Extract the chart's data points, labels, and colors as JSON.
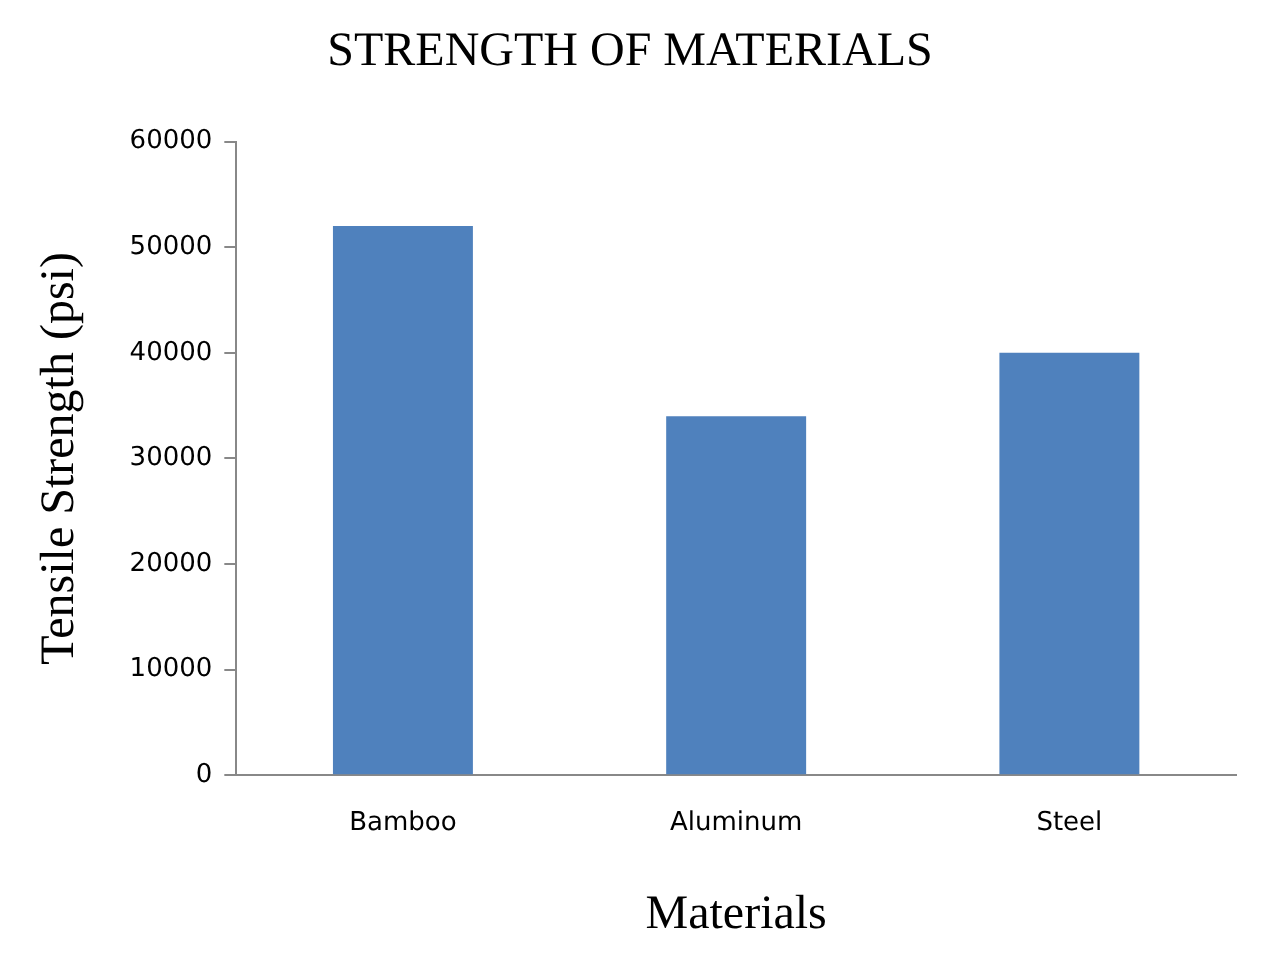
{
  "chart_data": {
    "type": "bar",
    "title": "STRENGTH OF MATERIALS",
    "xlabel": "Materials",
    "ylabel": "Tensile Strength (psi)",
    "categories": [
      "Bamboo",
      "Aluminum",
      "Steel"
    ],
    "values": [
      52000,
      34000,
      40000
    ],
    "color": "#4f81bd",
    "ylim": [
      0,
      60000
    ],
    "yticks": [
      0,
      10000,
      20000,
      30000,
      40000,
      50000,
      60000
    ],
    "grid": false,
    "legend": false
  }
}
